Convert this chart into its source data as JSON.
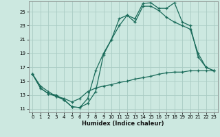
{
  "xlabel": "Humidex (Indice chaleur)",
  "bg_color": "#cce8e0",
  "grid_color": "#aaccc4",
  "line_color": "#1a6b5a",
  "xlim": [
    -0.5,
    23.5
  ],
  "ylim": [
    10.5,
    26.5
  ],
  "yticks": [
    11,
    13,
    15,
    17,
    19,
    21,
    23,
    25
  ],
  "xticks": [
    0,
    1,
    2,
    3,
    4,
    5,
    6,
    7,
    8,
    9,
    10,
    11,
    12,
    13,
    14,
    15,
    16,
    17,
    18,
    19,
    20,
    21,
    22,
    23
  ],
  "line1_x": [
    0,
    1,
    2,
    3,
    4,
    5,
    6,
    7,
    8,
    9,
    10,
    11,
    12,
    13,
    14,
    15,
    16,
    17,
    18,
    19,
    20,
    21,
    22,
    23
  ],
  "line1_y": [
    16.0,
    14.0,
    13.2,
    13.0,
    12.3,
    11.3,
    11.2,
    11.8,
    13.5,
    18.8,
    21.0,
    24.0,
    24.5,
    24.0,
    26.2,
    26.3,
    25.5,
    25.5,
    26.3,
    23.5,
    23.0,
    18.5,
    17.0,
    16.5
  ],
  "line2_x": [
    0,
    1,
    2,
    3,
    4,
    5,
    6,
    7,
    8,
    9,
    10,
    11,
    12,
    13,
    14,
    15,
    16,
    17,
    18,
    19,
    20,
    21,
    22,
    23
  ],
  "line2_y": [
    16.0,
    14.0,
    13.2,
    12.8,
    12.3,
    11.3,
    11.2,
    12.5,
    16.5,
    19.0,
    21.0,
    23.0,
    24.5,
    23.5,
    25.8,
    25.8,
    25.2,
    24.2,
    23.5,
    23.0,
    22.5,
    19.0,
    17.0,
    16.5
  ],
  "line3_x": [
    0,
    1,
    2,
    3,
    4,
    5,
    6,
    7,
    8,
    9,
    10,
    11,
    12,
    13,
    14,
    15,
    16,
    17,
    18,
    19,
    20,
    21,
    22,
    23
  ],
  "line3_y": [
    16.0,
    14.3,
    13.5,
    12.8,
    12.5,
    12.0,
    12.5,
    13.5,
    14.0,
    14.3,
    14.5,
    14.8,
    15.0,
    15.3,
    15.5,
    15.7,
    16.0,
    16.2,
    16.3,
    16.3,
    16.5,
    16.5,
    16.5,
    16.5
  ]
}
